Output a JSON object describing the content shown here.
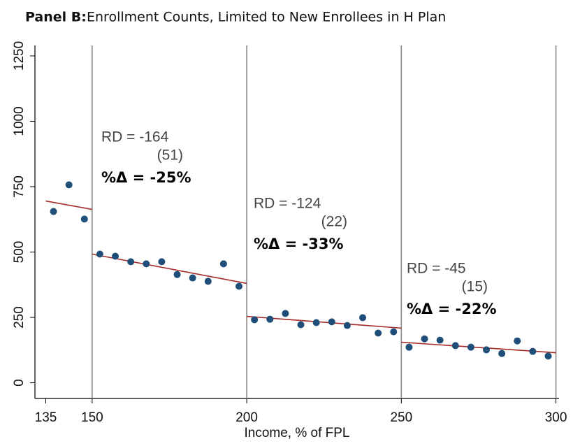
{
  "chart_data": {
    "type": "scatter",
    "title_label": "Panel B:",
    "title": "Enrollment Counts, Limited to New Enrollees in H Plan",
    "x_label": "Income, % of FPL",
    "xlim": [
      131.5,
      301
    ],
    "ylim": [
      -60,
      1290
    ],
    "xticks": [
      135,
      150,
      200,
      250,
      300
    ],
    "yticks": [
      0,
      250,
      500,
      750,
      1000,
      1250
    ],
    "cutoffs": [
      150,
      200,
      250,
      300
    ],
    "cutoff_color": "#888888",
    "series": [
      {
        "color": "#1f4e79",
        "x": [
          137.5,
          142.5,
          147.5,
          152.5,
          157.5,
          162.5,
          167.5,
          172.5,
          177.5,
          182.5,
          187.5,
          192.5,
          197.5,
          202.5,
          207.5,
          212.5,
          217.5,
          222.5,
          227.5,
          232.5,
          237.5,
          242.5,
          247.5,
          252.5,
          257.5,
          262.5,
          267.5,
          272.5,
          277.5,
          282.5,
          287.5,
          292.5,
          297.5
        ],
        "values": [
          655,
          757,
          626,
          492,
          484,
          463,
          455,
          463,
          414,
          401,
          388,
          455,
          369,
          241,
          243,
          265,
          222,
          230,
          233,
          219,
          249,
          190,
          195,
          136,
          168,
          163,
          142,
          136,
          126,
          112,
          160,
          120,
          102
        ]
      }
    ],
    "fit_color": "#a52a2a",
    "fit_lines": [
      {
        "x": [
          135,
          150
        ],
        "values": [
          695,
          663
        ]
      },
      {
        "x": [
          150,
          200
        ],
        "values": [
          492,
          380
        ]
      },
      {
        "x": [
          200,
          250
        ],
        "values": [
          254,
          209
        ]
      },
      {
        "x": [
          250,
          300
        ],
        "values": [
          155,
          115
        ]
      }
    ],
    "annotations": [
      {
        "rd": "RD = -164",
        "se": "(51)",
        "pct": "%Δ = -25%"
      },
      {
        "rd": "RD = -124",
        "se": "(22)",
        "pct": "%Δ = -33%"
      },
      {
        "rd": "RD = -45",
        "se": "(15)",
        "pct": "%Δ = -22%"
      }
    ]
  }
}
